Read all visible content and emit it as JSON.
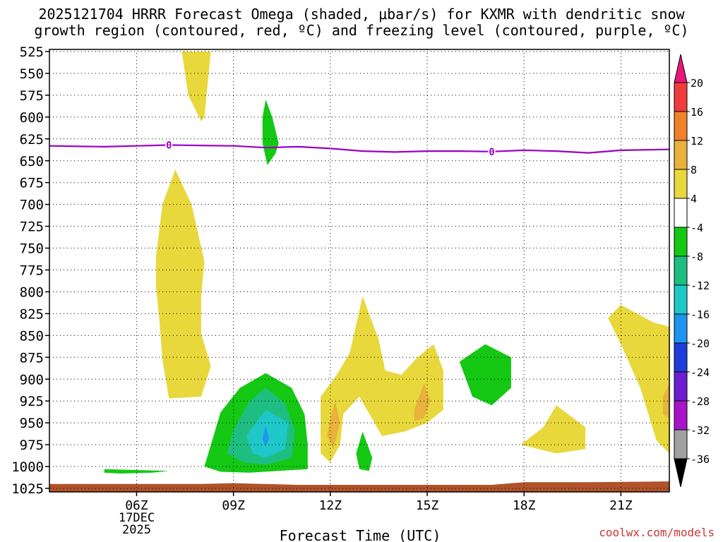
{
  "chart_data": {
    "type": "contour",
    "title_line1": "2025121704 HRRR Forecast Omega (shaded, μbar/s) for KXMR with dendritic snow",
    "title_line2": "growth region (contoured, red, ºC) and freezing level (contoured, purple, ºC)",
    "xlabel": "Forecast Time (UTC)",
    "watermark": "coolwx.com/models",
    "x_range_hours_utc": [
      3.3,
      22.5
    ],
    "x_ticks": [
      {
        "hour": 6,
        "label": "06Z",
        "sub1": "17DEC",
        "sub2": "2025"
      },
      {
        "hour": 9,
        "label": "09Z"
      },
      {
        "hour": 12,
        "label": "12Z"
      },
      {
        "hour": 15,
        "label": "15Z"
      },
      {
        "hour": 18,
        "label": "18Z"
      },
      {
        "hour": 21,
        "label": "21Z"
      }
    ],
    "y_axis": "pressure (hPa)",
    "y_ticks": [
      525,
      550,
      575,
      600,
      625,
      650,
      675,
      700,
      725,
      750,
      775,
      800,
      825,
      850,
      875,
      900,
      925,
      950,
      975,
      1000,
      1025
    ],
    "colorbar": {
      "labels": [
        "20",
        "16",
        "12",
        "8",
        "4",
        "-4",
        "-8",
        "-12",
        "-16",
        "-20",
        "-24",
        "-28",
        "-32",
        "-36"
      ],
      "colors": [
        "#e8187a",
        "#f03c3c",
        "#f0822a",
        "#e8b23c",
        "#e8d83c",
        "#ffffff",
        "#14c814",
        "#1ebe82",
        "#1ec8c8",
        "#1e96f0",
        "#1e3cdc",
        "#6e1ed2",
        "#aa14c8",
        "#a0a0a0",
        "#000000"
      ]
    },
    "freezing_level": {
      "label": "0",
      "points": [
        [
          3.3,
          633
        ],
        [
          5,
          634
        ],
        [
          6,
          633
        ],
        [
          7,
          632
        ],
        [
          8,
          632.5
        ],
        [
          9,
          633
        ],
        [
          10,
          635
        ],
        [
          11,
          634
        ],
        [
          12,
          636
        ],
        [
          13,
          639
        ],
        [
          14,
          640
        ],
        [
          15,
          639
        ],
        [
          16,
          639
        ],
        [
          17,
          639.5
        ],
        [
          18,
          638
        ],
        [
          19,
          639
        ],
        [
          20,
          641
        ],
        [
          21,
          638
        ],
        [
          22.5,
          637
        ]
      ],
      "labels_at_hours": [
        7,
        17
      ]
    },
    "omega_regions": [
      {
        "name": "yellow-upper-plume",
        "level": 4,
        "points": [
          [
            7.4,
            525
          ],
          [
            8.3,
            525
          ],
          [
            8.1,
            600
          ],
          [
            8.0,
            605
          ],
          [
            7.6,
            575
          ],
          [
            7.5,
            550
          ]
        ]
      },
      {
        "name": "yellow-left-column",
        "level": 4,
        "points": [
          [
            7.2,
            660
          ],
          [
            7.7,
            700
          ],
          [
            8.1,
            765
          ],
          [
            8.0,
            805
          ],
          [
            8.0,
            848
          ],
          [
            8.3,
            885
          ],
          [
            8.0,
            920
          ],
          [
            7.0,
            922
          ],
          [
            6.8,
            878
          ],
          [
            6.7,
            830
          ],
          [
            6.6,
            795
          ],
          [
            6.6,
            760
          ],
          [
            6.8,
            700
          ]
        ]
      },
      {
        "name": "green-upper-streak",
        "level": -4,
        "points": [
          [
            10.0,
            580
          ],
          [
            10.2,
            600
          ],
          [
            10.4,
            630
          ],
          [
            10.3,
            642
          ],
          [
            10.05,
            655
          ],
          [
            9.9,
            630
          ],
          [
            9.9,
            600
          ]
        ]
      },
      {
        "name": "green-lower-blob",
        "level": -4,
        "points": [
          [
            8.1,
            1000
          ],
          [
            8.6,
            938
          ],
          [
            9.2,
            910
          ],
          [
            10.0,
            893
          ],
          [
            10.8,
            910
          ],
          [
            11.2,
            940
          ],
          [
            11.3,
            975
          ],
          [
            11.3,
            1003
          ],
          [
            9.5,
            1007
          ],
          [
            8.6,
            1006
          ]
        ]
      },
      {
        "name": "teal-core",
        "level": -8,
        "points": [
          [
            9.0,
            958
          ],
          [
            9.5,
            925
          ],
          [
            10.0,
            910
          ],
          [
            10.6,
            928
          ],
          [
            10.9,
            958
          ],
          [
            10.8,
            990
          ],
          [
            10.0,
            998
          ],
          [
            9.3,
            995
          ],
          [
            8.8,
            985
          ]
        ]
      },
      {
        "name": "cyan-core",
        "level": -12,
        "points": [
          [
            9.4,
            965
          ],
          [
            10.0,
            935
          ],
          [
            10.7,
            950
          ],
          [
            10.6,
            980
          ],
          [
            10.0,
            990
          ],
          [
            9.6,
            985
          ]
        ]
      },
      {
        "name": "blue-dot",
        "level": -16,
        "points": [
          [
            10.0,
            953
          ],
          [
            10.1,
            968
          ],
          [
            10.0,
            977
          ],
          [
            9.9,
            968
          ]
        ]
      },
      {
        "name": "green-small-lower",
        "level": -4,
        "points": [
          [
            5.0,
            1003
          ],
          [
            6.0,
            1004
          ],
          [
            7.0,
            1005
          ],
          [
            6.5,
            1007
          ],
          [
            5.5,
            1008
          ],
          [
            5.0,
            1007
          ]
        ]
      },
      {
        "name": "yellow-center-group",
        "level": 4,
        "points": [
          [
            11.7,
            985
          ],
          [
            11.7,
            920
          ],
          [
            12.2,
            895
          ],
          [
            12.6,
            870
          ],
          [
            13.0,
            805
          ],
          [
            13.5,
            855
          ],
          [
            13.7,
            890
          ],
          [
            14.2,
            895
          ],
          [
            14.7,
            875
          ],
          [
            15.2,
            860
          ],
          [
            15.5,
            890
          ],
          [
            15.5,
            935
          ],
          [
            15.0,
            950
          ],
          [
            14.3,
            960
          ],
          [
            13.6,
            965
          ],
          [
            12.9,
            920
          ],
          [
            12.4,
            940
          ],
          [
            12.3,
            975
          ],
          [
            12.0,
            995
          ]
        ]
      },
      {
        "name": "orange-spot-12z",
        "level": 8,
        "points": [
          [
            12.0,
            945
          ],
          [
            12.15,
            925
          ],
          [
            12.3,
            950
          ],
          [
            12.1,
            980
          ],
          [
            11.9,
            965
          ]
        ]
      },
      {
        "name": "orange-spot-15z",
        "level": 8,
        "points": [
          [
            14.6,
            935
          ],
          [
            14.9,
            905
          ],
          [
            15.1,
            925
          ],
          [
            14.9,
            945
          ],
          [
            14.6,
            948
          ]
        ]
      },
      {
        "name": "green-small-13z",
        "level": -4,
        "points": [
          [
            12.8,
            985
          ],
          [
            13.0,
            960
          ],
          [
            13.3,
            990
          ],
          [
            13.2,
            1005
          ],
          [
            12.9,
            1003
          ]
        ]
      },
      {
        "name": "green-right-blob",
        "level": -4,
        "points": [
          [
            16.0,
            880
          ],
          [
            16.8,
            860
          ],
          [
            17.6,
            875
          ],
          [
            17.6,
            910
          ],
          [
            17.0,
            930
          ],
          [
            16.4,
            920
          ]
        ]
      },
      {
        "name": "yellow-lower-right",
        "level": 4,
        "points": [
          [
            17.9,
            975
          ],
          [
            18.6,
            955
          ],
          [
            19.0,
            930
          ],
          [
            19.9,
            955
          ],
          [
            19.9,
            980
          ],
          [
            19.0,
            985
          ]
        ]
      },
      {
        "name": "yellow-far-right",
        "level": 4,
        "points": [
          [
            20.6,
            830
          ],
          [
            21.0,
            815
          ],
          [
            22.0,
            835
          ],
          [
            22.5,
            840
          ],
          [
            22.5,
            985
          ],
          [
            22.1,
            970
          ],
          [
            21.6,
            910
          ],
          [
            21.0,
            860
          ]
        ]
      },
      {
        "name": "orange-far-right",
        "level": 8,
        "points": [
          [
            22.3,
            920
          ],
          [
            22.5,
            905
          ],
          [
            22.5,
            945
          ],
          [
            22.3,
            940
          ]
        ]
      }
    ],
    "ground": {
      "color": "#b0522a",
      "points": [
        [
          3.3,
          1020
        ],
        [
          8,
          1020
        ],
        [
          9,
          1019
        ],
        [
          11,
          1021
        ],
        [
          13,
          1021
        ],
        [
          17,
          1021
        ],
        [
          18,
          1018
        ],
        [
          20,
          1018
        ],
        [
          22.5,
          1017
        ]
      ]
    }
  }
}
